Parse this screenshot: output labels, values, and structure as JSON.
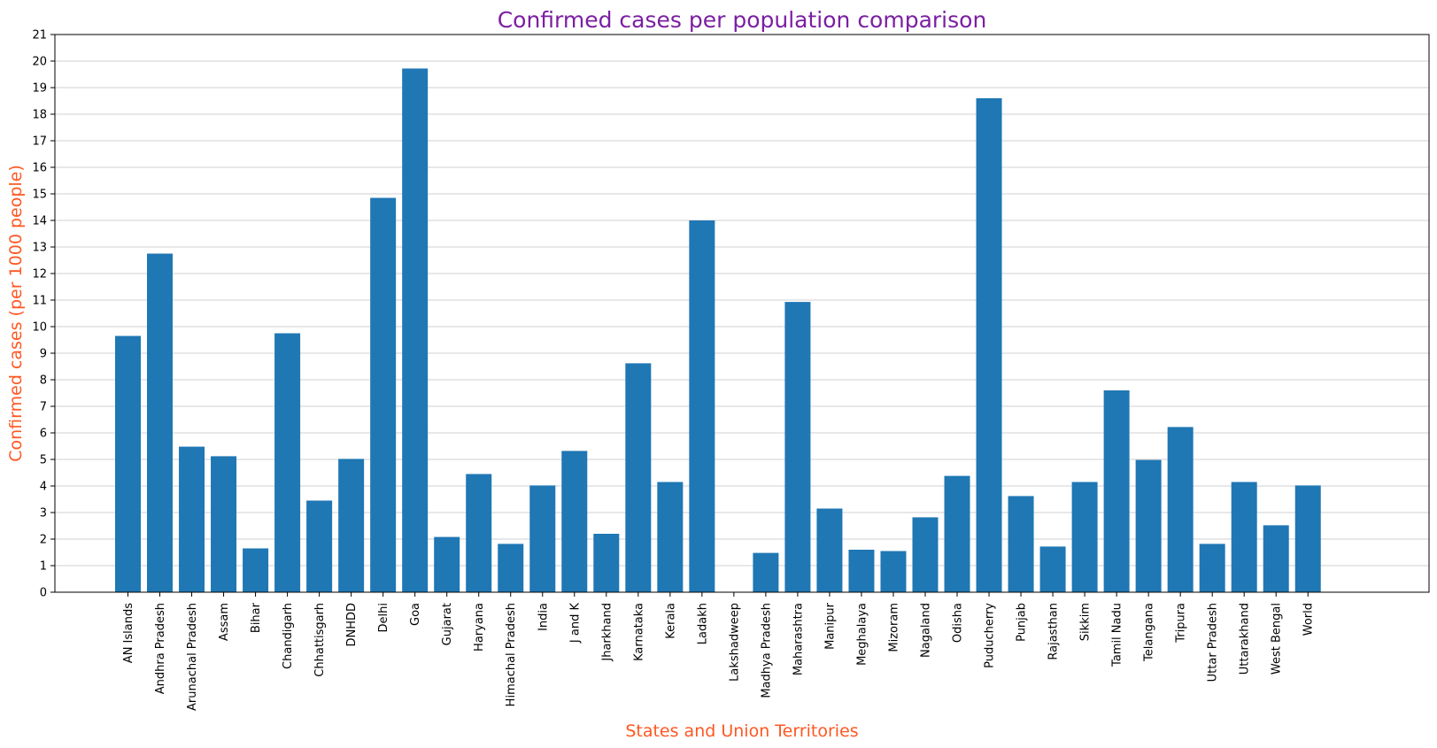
{
  "chart_data": {
    "type": "bar",
    "title": "Confirmed cases per population comparison",
    "xlabel": "States and Union Territories",
    "ylabel": "Confirmed cases (per 1000 people)",
    "ylim": [
      0,
      21
    ],
    "yticks": [
      0,
      1,
      2,
      3,
      4,
      5,
      6,
      7,
      8,
      9,
      10,
      11,
      12,
      13,
      14,
      15,
      16,
      17,
      18,
      19,
      20,
      21
    ],
    "grid": "horizontal",
    "colors": {
      "bar": "#1f77b4",
      "title": "#7b1fa2",
      "axis_label": "#ff5722"
    },
    "categories": [
      "AN Islands",
      "Andhra Pradesh",
      "Arunachal Pradesh",
      "Assam",
      "Bihar",
      "Chandigarh",
      "Chhattisgarh",
      "DNHDD",
      "Delhi",
      "Goa",
      "Gujarat",
      "Haryana",
      "Himachal Pradesh",
      "India",
      "J and K",
      "Jharkhand",
      "Karnataka",
      "Kerala",
      "Ladakh",
      "Lakshadweep",
      "Madhya Pradesh",
      "Maharashtra",
      "Manipur",
      "Meghalaya",
      "Mizoram",
      "Nagaland",
      "Odisha",
      "Puducherry",
      "Punjab",
      "Rajasthan",
      "Sikkim",
      "Tamil Nadu",
      "Telangana",
      "Tripura",
      "Uttar Pradesh",
      "Uttarakhand",
      "West Bengal",
      "World"
    ],
    "values": [
      9.65,
      12.75,
      5.48,
      5.12,
      1.65,
      9.75,
      3.45,
      5.02,
      14.85,
      19.72,
      2.08,
      4.45,
      1.82,
      4.02,
      5.32,
      2.2,
      8.62,
      4.15,
      14.0,
      0,
      1.48,
      10.93,
      3.15,
      1.6,
      1.55,
      2.82,
      4.38,
      18.6,
      3.62,
      1.72,
      4.15,
      7.6,
      4.98,
      6.22,
      1.82,
      4.15,
      2.52,
      4.02
    ]
  }
}
